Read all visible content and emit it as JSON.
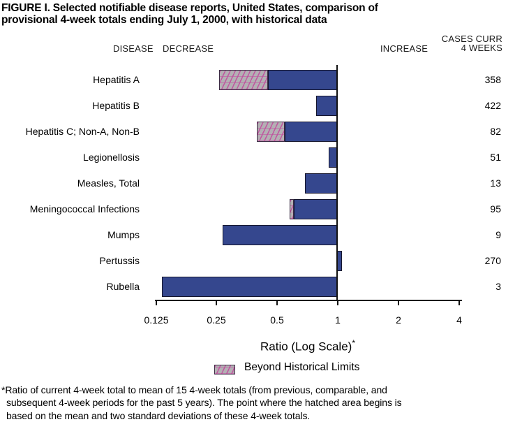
{
  "figure": {
    "title": "FIGURE I. Selected notifiable disease reports, United States, comparison of\nprovisional 4-week totals ending July 1, 2000, with historical data",
    "headers": {
      "disease": "DISEASE",
      "decrease": "DECREASE",
      "increase": "INCREASE",
      "cases": "CASES CURR\n4 WEEKS"
    },
    "footnote": "*Ratio of current 4-week total to mean of 15 4-week totals (from previous, comparable, and\nsubsequent 4-week periods for the past 5 years). The point where the hatched area begins is\nbased on the mean and two standard deviations of these 4-week totals.",
    "colors": {
      "bar": "#35478e",
      "bar_border": "#16162c",
      "hatch_bg": "#b4b0b4",
      "hatch_line": "#c14d9e",
      "axis": "#111111"
    }
  },
  "chart_data": {
    "type": "bar",
    "orientation": "horizontal",
    "scale": "log2",
    "title": "FIGURE I. Selected notifiable disease reports, United States, comparison of provisional 4-week totals ending July 1, 2000, with historical data",
    "xlabel": "Ratio (Log Scale)",
    "xlabel_sup": "*",
    "x_tick_labels": [
      "0.125",
      "0.25",
      "0.5",
      "1",
      "2",
      "4"
    ],
    "x_tick_values": [
      0.125,
      0.25,
      0.5,
      1,
      2,
      4
    ],
    "xlim": [
      0.117,
      4.2
    ],
    "baseline": 1,
    "legend": {
      "label": "Beyond Historical Limits",
      "position": "bottom"
    },
    "value_column": "CASES CURR 4 WEEKS",
    "rows": [
      {
        "disease": "Hepatitis A",
        "cases": 358,
        "ratio": 0.26,
        "beyond_limit_to": 0.455
      },
      {
        "disease": "Hepatitis B",
        "cases": 422,
        "ratio": 0.79,
        "beyond_limit_to": null
      },
      {
        "disease": "Hepatitis C; Non-A, Non-B",
        "cases": 82,
        "ratio": 0.4,
        "beyond_limit_to": 0.55
      },
      {
        "disease": "Legionellosis",
        "cases": 51,
        "ratio": 0.91,
        "beyond_limit_to": null
      },
      {
        "disease": "Measles, Total",
        "cases": 13,
        "ratio": 0.69,
        "beyond_limit_to": null
      },
      {
        "disease": "Meningococcal Infections",
        "cases": 95,
        "ratio": 0.58,
        "beyond_limit_to": 0.61
      },
      {
        "disease": "Mumps",
        "cases": 9,
        "ratio": 0.27,
        "beyond_limit_to": null
      },
      {
        "disease": "Pertussis",
        "cases": 270,
        "ratio": 1.05,
        "beyond_limit_to": null
      },
      {
        "disease": "Rubella",
        "cases": 3,
        "ratio": 0.135,
        "beyond_limit_to": null
      }
    ]
  }
}
